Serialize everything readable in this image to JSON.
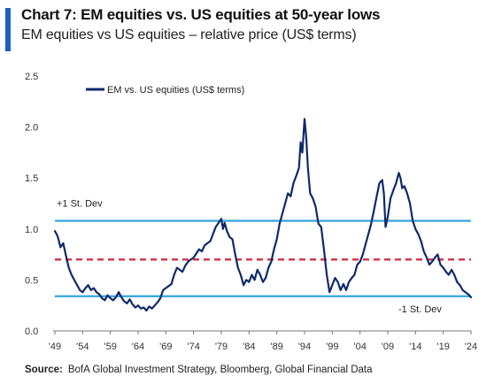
{
  "header": {
    "title": "Chart 7: EM equities vs. US equities at 50-year lows",
    "subtitle": "EM equities vs US equities – relative price (US$ terms)"
  },
  "source": {
    "label": "Source:",
    "text": "BofA Global Investment Strategy, Bloomberg, Global Financial Data"
  },
  "colors": {
    "series": "#0d2a6b",
    "band": "#3fa9e0",
    "mean": "#d32f45",
    "accent": "#1f5fbf"
  },
  "chart_data": {
    "type": "line",
    "title": "Chart 7: EM equities vs. US equities at 50-year lows",
    "subtitle": "EM equities vs US equities – relative price (US$ terms)",
    "xlim": [
      1949,
      2024
    ],
    "ylim": [
      0.0,
      2.5
    ],
    "x_ticks": [
      "'49",
      "'54",
      "'59",
      "'64",
      "'69",
      "'74",
      "'79",
      "'84",
      "'89",
      "'94",
      "'99",
      "'04",
      "'09",
      "'14",
      "'19",
      "'24"
    ],
    "y_ticks": [
      "0.0",
      "0.5",
      "1.0",
      "1.5",
      "2.0",
      "2.5"
    ],
    "legend": {
      "label": "EM vs. US equities (US$ terms)",
      "position": "top-left"
    },
    "grid": false,
    "reference_lines": [
      {
        "label": "+1 St. Dev",
        "y": 1.08,
        "style": "solid"
      },
      {
        "label": "",
        "y": 0.7,
        "style": "dashed"
      },
      {
        "label": "-1 St. Dev",
        "y": 0.34,
        "style": "solid"
      }
    ],
    "series": [
      {
        "name": "EM vs. US equities (US$ terms)",
        "points": [
          [
            1949.0,
            0.98
          ],
          [
            1949.5,
            0.93
          ],
          [
            1950.0,
            0.82
          ],
          [
            1950.5,
            0.86
          ],
          [
            1951.0,
            0.74
          ],
          [
            1951.5,
            0.62
          ],
          [
            1952.0,
            0.55
          ],
          [
            1952.5,
            0.5
          ],
          [
            1953.0,
            0.45
          ],
          [
            1953.5,
            0.4
          ],
          [
            1954.0,
            0.38
          ],
          [
            1954.5,
            0.42
          ],
          [
            1955.0,
            0.45
          ],
          [
            1955.5,
            0.4
          ],
          [
            1956.0,
            0.42
          ],
          [
            1956.5,
            0.38
          ],
          [
            1957.0,
            0.36
          ],
          [
            1957.5,
            0.32
          ],
          [
            1958.0,
            0.3
          ],
          [
            1958.5,
            0.35
          ],
          [
            1959.0,
            0.32
          ],
          [
            1959.5,
            0.3
          ],
          [
            1960.0,
            0.33
          ],
          [
            1960.5,
            0.38
          ],
          [
            1961.0,
            0.33
          ],
          [
            1961.5,
            0.29
          ],
          [
            1962.0,
            0.27
          ],
          [
            1962.5,
            0.31
          ],
          [
            1963.0,
            0.26
          ],
          [
            1963.5,
            0.23
          ],
          [
            1964.0,
            0.25
          ],
          [
            1964.5,
            0.22
          ],
          [
            1965.0,
            0.23
          ],
          [
            1965.5,
            0.2
          ],
          [
            1966.0,
            0.24
          ],
          [
            1966.5,
            0.22
          ],
          [
            1967.0,
            0.25
          ],
          [
            1967.5,
            0.28
          ],
          [
            1968.0,
            0.32
          ],
          [
            1968.5,
            0.4
          ],
          [
            1969.0,
            0.42
          ],
          [
            1969.5,
            0.44
          ],
          [
            1970.0,
            0.46
          ],
          [
            1970.5,
            0.55
          ],
          [
            1971.0,
            0.62
          ],
          [
            1971.5,
            0.6
          ],
          [
            1972.0,
            0.58
          ],
          [
            1972.5,
            0.64
          ],
          [
            1973.0,
            0.68
          ],
          [
            1973.5,
            0.7
          ],
          [
            1974.0,
            0.72
          ],
          [
            1974.5,
            0.76
          ],
          [
            1975.0,
            0.8
          ],
          [
            1975.5,
            0.78
          ],
          [
            1976.0,
            0.84
          ],
          [
            1976.5,
            0.86
          ],
          [
            1977.0,
            0.88
          ],
          [
            1977.5,
            0.95
          ],
          [
            1978.0,
            1.02
          ],
          [
            1978.5,
            1.06
          ],
          [
            1979.0,
            1.1
          ],
          [
            1979.3,
            1.0
          ],
          [
            1979.6,
            1.06
          ],
          [
            1980.0,
            0.98
          ],
          [
            1980.5,
            0.92
          ],
          [
            1981.0,
            0.9
          ],
          [
            1981.5,
            0.75
          ],
          [
            1982.0,
            0.62
          ],
          [
            1982.5,
            0.55
          ],
          [
            1983.0,
            0.45
          ],
          [
            1983.5,
            0.5
          ],
          [
            1984.0,
            0.48
          ],
          [
            1984.5,
            0.55
          ],
          [
            1985.0,
            0.5
          ],
          [
            1985.5,
            0.6
          ],
          [
            1986.0,
            0.55
          ],
          [
            1986.5,
            0.48
          ],
          [
            1987.0,
            0.52
          ],
          [
            1987.5,
            0.62
          ],
          [
            1988.0,
            0.68
          ],
          [
            1988.5,
            0.8
          ],
          [
            1989.0,
            0.9
          ],
          [
            1989.5,
            1.05
          ],
          [
            1990.0,
            1.15
          ],
          [
            1990.5,
            1.25
          ],
          [
            1991.0,
            1.35
          ],
          [
            1991.5,
            1.32
          ],
          [
            1992.0,
            1.45
          ],
          [
            1992.5,
            1.52
          ],
          [
            1993.0,
            1.6
          ],
          [
            1993.3,
            1.85
          ],
          [
            1993.6,
            1.75
          ],
          [
            1994.0,
            2.08
          ],
          [
            1994.3,
            1.9
          ],
          [
            1994.6,
            1.6
          ],
          [
            1995.0,
            1.35
          ],
          [
            1995.5,
            1.3
          ],
          [
            1996.0,
            1.22
          ],
          [
            1996.5,
            1.05
          ],
          [
            1997.0,
            1.02
          ],
          [
            1997.5,
            0.8
          ],
          [
            1998.0,
            0.55
          ],
          [
            1998.5,
            0.38
          ],
          [
            1999.0,
            0.45
          ],
          [
            1999.5,
            0.52
          ],
          [
            2000.0,
            0.48
          ],
          [
            2000.5,
            0.4
          ],
          [
            2001.0,
            0.46
          ],
          [
            2001.5,
            0.4
          ],
          [
            2002.0,
            0.48
          ],
          [
            2002.5,
            0.52
          ],
          [
            2003.0,
            0.55
          ],
          [
            2003.5,
            0.65
          ],
          [
            2004.0,
            0.68
          ],
          [
            2004.5,
            0.75
          ],
          [
            2005.0,
            0.85
          ],
          [
            2005.5,
            0.95
          ],
          [
            2006.0,
            1.05
          ],
          [
            2006.5,
            1.18
          ],
          [
            2007.0,
            1.32
          ],
          [
            2007.5,
            1.45
          ],
          [
            2008.0,
            1.48
          ],
          [
            2008.3,
            1.35
          ],
          [
            2008.6,
            1.02
          ],
          [
            2009.0,
            1.12
          ],
          [
            2009.5,
            1.3
          ],
          [
            2010.0,
            1.38
          ],
          [
            2010.5,
            1.45
          ],
          [
            2011.0,
            1.55
          ],
          [
            2011.3,
            1.5
          ],
          [
            2011.6,
            1.4
          ],
          [
            2012.0,
            1.42
          ],
          [
            2012.5,
            1.35
          ],
          [
            2013.0,
            1.25
          ],
          [
            2013.5,
            1.08
          ],
          [
            2014.0,
            1.0
          ],
          [
            2014.5,
            0.95
          ],
          [
            2015.0,
            0.88
          ],
          [
            2015.5,
            0.78
          ],
          [
            2016.0,
            0.72
          ],
          [
            2016.5,
            0.65
          ],
          [
            2017.0,
            0.68
          ],
          [
            2017.5,
            0.72
          ],
          [
            2018.0,
            0.75
          ],
          [
            2018.5,
            0.65
          ],
          [
            2019.0,
            0.62
          ],
          [
            2019.5,
            0.58
          ],
          [
            2020.0,
            0.55
          ],
          [
            2020.5,
            0.6
          ],
          [
            2021.0,
            0.55
          ],
          [
            2021.5,
            0.48
          ],
          [
            2022.0,
            0.45
          ],
          [
            2022.5,
            0.4
          ],
          [
            2023.0,
            0.38
          ],
          [
            2023.5,
            0.36
          ],
          [
            2024.0,
            0.33
          ]
        ]
      }
    ]
  }
}
